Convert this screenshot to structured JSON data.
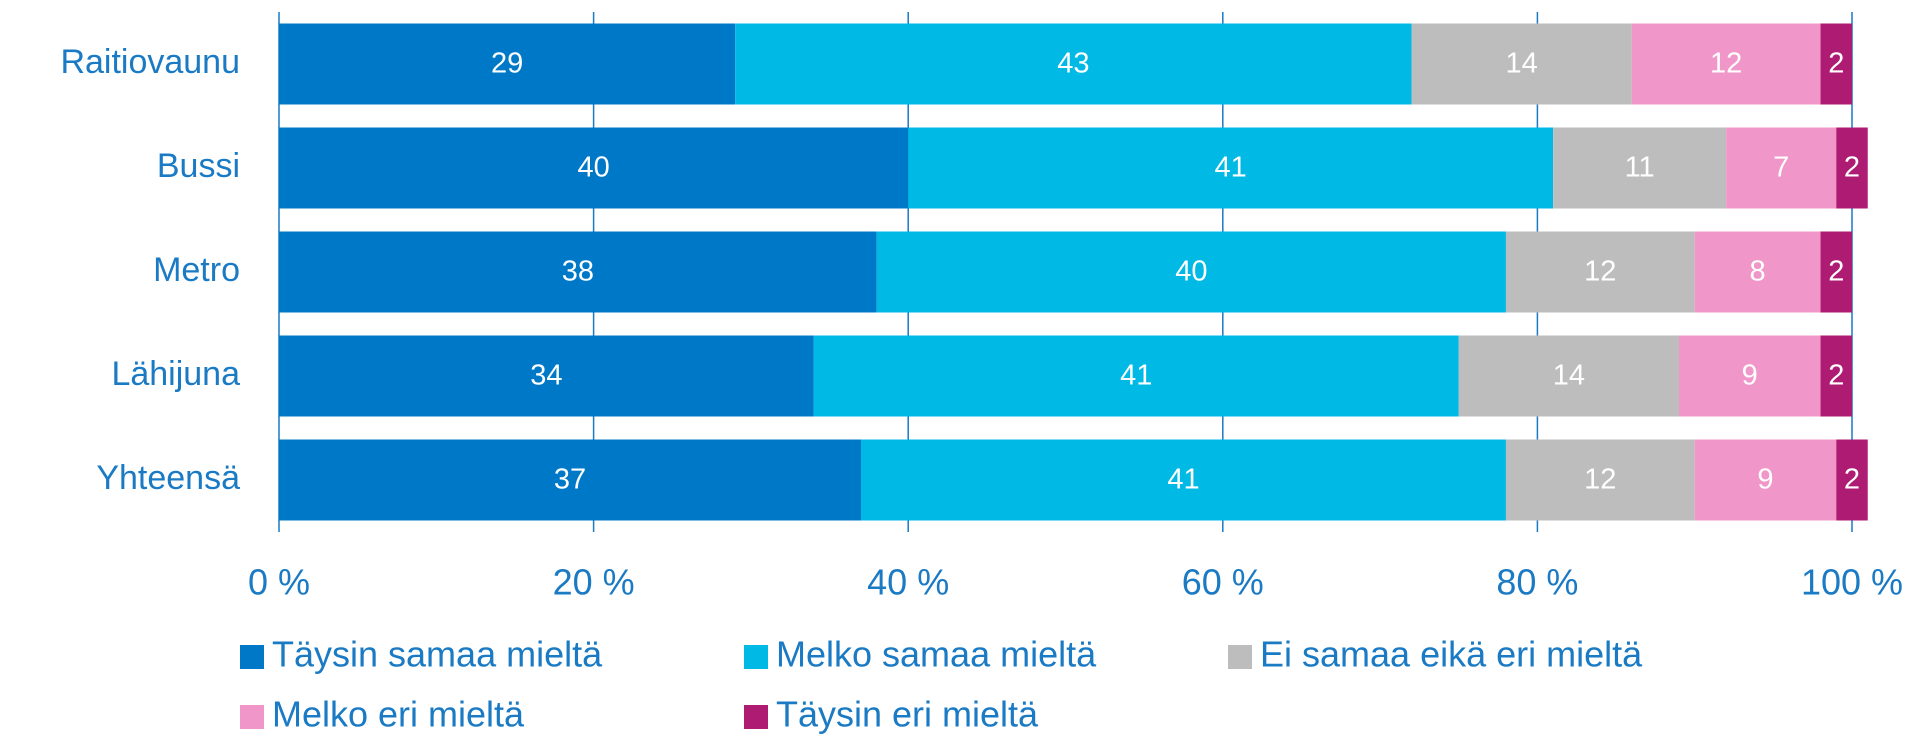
{
  "chart_data": {
    "type": "stacked_barh",
    "categories": [
      "Raitiovaunu",
      "Bussi",
      "Metro",
      "Lähijuna",
      "Yhteensä"
    ],
    "series": [
      {
        "name": "Täysin samaa mieltä",
        "color": "#0078c8",
        "values": [
          29,
          40,
          38,
          34,
          37
        ]
      },
      {
        "name": "Melko samaa mieltä",
        "color": "#00b9e4",
        "values": [
          43,
          41,
          40,
          41,
          41
        ]
      },
      {
        "name": "Ei samaa eikä eri mieltä",
        "color": "#bdbdbd",
        "values": [
          14,
          11,
          12,
          14,
          12
        ]
      },
      {
        "name": "Melko eri mieltä",
        "color": "#f096c8",
        "values": [
          12,
          7,
          8,
          9,
          9
        ]
      },
      {
        "name": "Täysin eri mieltä",
        "color": "#ae1b73",
        "values": [
          2,
          2,
          2,
          2,
          2
        ]
      }
    ],
    "xlim": [
      0,
      100
    ],
    "xticks": [
      {
        "value": 0,
        "label": "0 %"
      },
      {
        "value": 20,
        "label": "20 %"
      },
      {
        "value": 40,
        "label": "40 %"
      },
      {
        "value": 60,
        "label": "60 %"
      },
      {
        "value": 80,
        "label": "80 %"
      },
      {
        "value": 100,
        "label": "100 %"
      }
    ],
    "grid": true,
    "legend": "bottom"
  }
}
